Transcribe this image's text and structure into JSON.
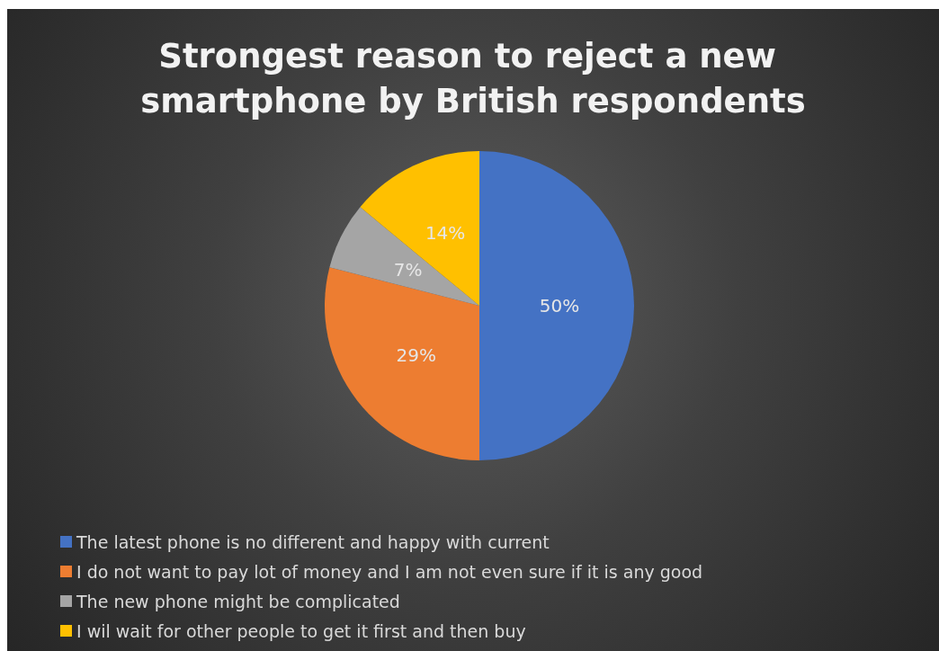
{
  "chart_data": {
    "type": "pie",
    "title": "Strongest reason to reject a new smartphone by British respondents",
    "categories": [
      "The latest phone is no different and happy with current",
      "I do not want to pay lot of money and I am not even sure if it is any good",
      "The new phone might be complicated",
      "I wil wait for other people to get it first and then buy"
    ],
    "values": [
      50,
      29,
      7,
      14
    ],
    "colors": [
      "#4472c4",
      "#ed7d31",
      "#a5a5a5",
      "#ffc000"
    ],
    "value_labels": [
      "50%",
      "29%",
      "7%",
      "14%"
    ],
    "legend": "bottom"
  }
}
